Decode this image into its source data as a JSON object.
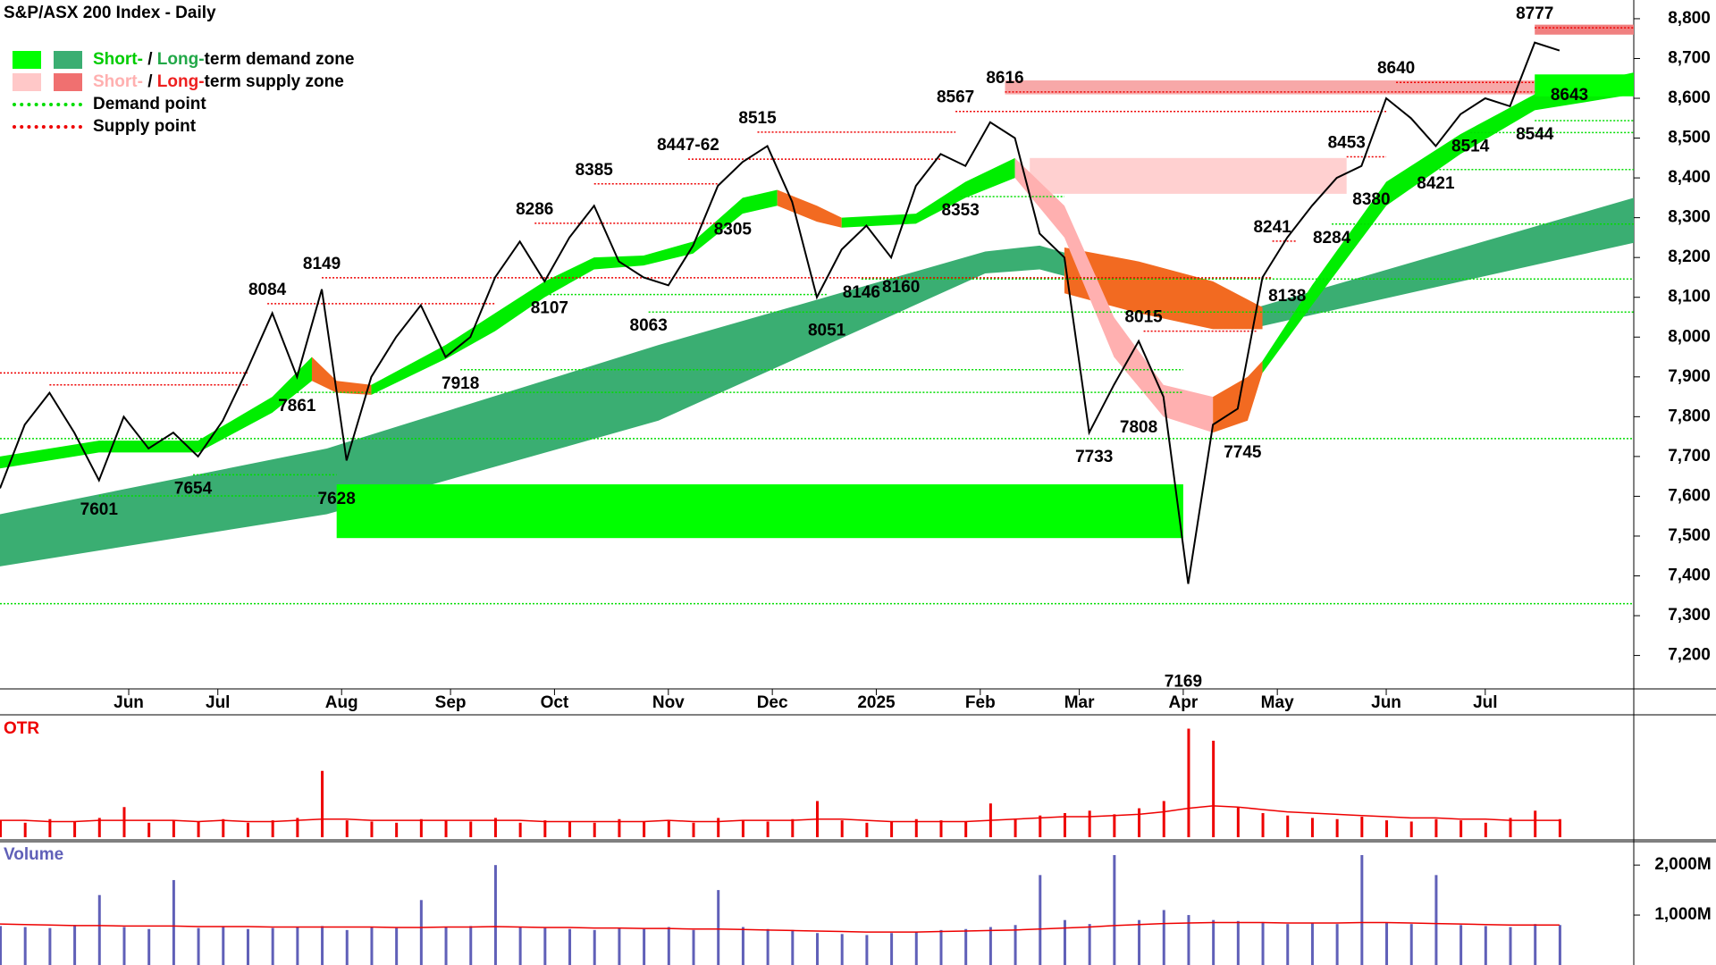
{
  "chart_data": {
    "type": "line",
    "title": "S&P/ASX 200 Index - Daily",
    "legend": [
      {
        "short": "Short-",
        "sep": " / ",
        "long": "Long-",
        "rest": "term demand zone"
      },
      {
        "short": "Short-",
        "sep": " / ",
        "long": "Long-",
        "rest": "term supply zone"
      },
      {
        "text": "Demand point"
      },
      {
        "text": "Supply point"
      }
    ],
    "x": [
      0,
      5,
      10,
      15,
      20,
      25,
      30,
      35,
      40,
      45,
      50,
      55,
      60,
      65,
      70,
      75,
      80,
      85,
      90,
      95,
      100,
      105,
      110,
      115,
      120,
      125,
      130,
      135,
      140,
      145,
      150,
      155,
      160,
      165,
      170,
      175,
      180,
      185,
      190,
      195,
      200,
      205,
      210,
      215,
      220,
      225,
      230,
      235,
      240,
      245,
      250,
      255,
      260,
      265,
      270,
      275,
      280,
      285,
      290,
      295,
      300,
      305,
      310,
      315
    ],
    "values": [
      7620,
      7780,
      7860,
      7760,
      7640,
      7800,
      7720,
      7760,
      7700,
      7790,
      7920,
      8060,
      7900,
      8120,
      7690,
      7900,
      8000,
      8080,
      7950,
      8000,
      8150,
      8240,
      8140,
      8250,
      8330,
      8190,
      8150,
      8130,
      8230,
      8380,
      8440,
      8480,
      8340,
      8100,
      8220,
      8280,
      8200,
      8380,
      8460,
      8430,
      8540,
      8500,
      8260,
      8200,
      7760,
      7880,
      7990,
      7850,
      7380,
      7780,
      7820,
      8150,
      8250,
      8330,
      8400,
      8430,
      8600,
      8550,
      8480,
      8560,
      8600,
      8580,
      8740,
      8720
    ],
    "color": "#000000",
    "xlim": [
      0,
      330
    ],
    "xticks": [
      {
        "value": 26,
        "label": "Jun"
      },
      {
        "value": 44,
        "label": "Jul"
      },
      {
        "value": 69,
        "label": "Aug"
      },
      {
        "value": 91,
        "label": "Sep"
      },
      {
        "value": 112,
        "label": "Oct"
      },
      {
        "value": 135,
        "label": "Nov"
      },
      {
        "value": 156,
        "label": "Dec"
      },
      {
        "value": 177,
        "label": "2025"
      },
      {
        "value": 198,
        "label": "Feb"
      },
      {
        "value": 218,
        "label": "Mar"
      },
      {
        "value": 239,
        "label": "Apr"
      },
      {
        "value": 258,
        "label": "May"
      },
      {
        "value": 280,
        "label": "Jun"
      },
      {
        "value": 300,
        "label": "Jul"
      }
    ],
    "ylim": [
      7116,
      8847
    ],
    "yticks": [
      {
        "value": 7200,
        "label": "7,200"
      },
      {
        "value": 7300,
        "label": "7,300"
      },
      {
        "value": 7400,
        "label": "7,400"
      },
      {
        "value": 7500,
        "label": "7,500"
      },
      {
        "value": 7600,
        "label": "7,600"
      },
      {
        "value": 7700,
        "label": "7,700"
      },
      {
        "value": 7800,
        "label": "7,800"
      },
      {
        "value": 7900,
        "label": "7,900"
      },
      {
        "value": 8000,
        "label": "8,000"
      },
      {
        "value": 8100,
        "label": "8,100"
      },
      {
        "value": 8200,
        "label": "8,200"
      },
      {
        "value": 8300,
        "label": "8,300"
      },
      {
        "value": 8400,
        "label": "8,400"
      },
      {
        "value": 8500,
        "label": "8,500"
      },
      {
        "value": 8600,
        "label": "8,600"
      },
      {
        "value": 8700,
        "label": "8,700"
      },
      {
        "value": 8800,
        "label": "8,800"
      }
    ],
    "bands": [
      {
        "color": "#3aae72",
        "x": [
          0,
          66,
          133,
          199,
          210,
          254,
          330
        ],
        "upper": [
          7555,
          7720,
          7980,
          8215,
          8230,
          8075,
          8350
        ],
        "lower": [
          7424,
          7555,
          7790,
          8160,
          8170,
          8025,
          8237
        ]
      },
      {
        "color": "#f26a21",
        "x": [
          215,
          230,
          245,
          255
        ],
        "upper": [
          8225,
          8190,
          8140,
          8075
        ],
        "lower": [
          8110,
          8060,
          8020,
          8020
        ]
      },
      {
        "color": "#00ee00",
        "x": [
          0,
          20,
          40,
          55,
          63
        ],
        "upper": [
          7700,
          7740,
          7740,
          7850,
          7950
        ],
        "lower": [
          7670,
          7710,
          7710,
          7810,
          7890
        ]
      },
      {
        "color": "#f26a21",
        "x": [
          63,
          68,
          75
        ],
        "upper": [
          7950,
          7890,
          7880
        ],
        "lower": [
          7890,
          7860,
          7855
        ]
      },
      {
        "color": "#00ee00",
        "x": [
          75,
          90,
          100,
          110,
          120,
          130,
          140,
          150,
          157
        ],
        "upper": [
          7880,
          7980,
          8060,
          8140,
          8200,
          8205,
          8240,
          8350,
          8370
        ],
        "lower": [
          7855,
          7945,
          8015,
          8100,
          8170,
          8180,
          8210,
          8310,
          8330
        ]
      },
      {
        "color": "#f26a21",
        "x": [
          157,
          165,
          170
        ],
        "upper": [
          8370,
          8330,
          8300
        ],
        "lower": [
          8330,
          8290,
          8275
        ]
      },
      {
        "color": "#00ee00",
        "x": [
          170,
          185,
          195,
          205
        ],
        "upper": [
          8300,
          8310,
          8390,
          8450
        ],
        "lower": [
          8275,
          8285,
          8350,
          8400
        ]
      },
      {
        "color": "#ffb0b0",
        "x": [
          205,
          215,
          225,
          235,
          245
        ],
        "upper": [
          8450,
          8330,
          8050,
          7880,
          7850
        ],
        "lower": [
          8400,
          8250,
          7950,
          7800,
          7760
        ]
      },
      {
        "color": "#f26a21",
        "x": [
          245,
          252,
          255
        ],
        "upper": [
          7850,
          7900,
          7940
        ],
        "lower": [
          7760,
          7790,
          7910
        ]
      },
      {
        "color": "#00ee00",
        "x": [
          255,
          265,
          280,
          295,
          310,
          330
        ],
        "upper": [
          7940,
          8130,
          8390,
          8510,
          8610,
          8665
        ],
        "lower": [
          7910,
          8080,
          8330,
          8460,
          8570,
          8610
        ]
      }
    ],
    "zones": [
      {
        "color": "#ffd0d0",
        "x": [
          208,
          272
        ],
        "range": [
          8360,
          8450
        ]
      },
      {
        "color": "#f7a8a8",
        "x": [
          203,
          310
        ],
        "range": [
          8610,
          8645
        ]
      },
      {
        "color": "#00ff00",
        "x": [
          68,
          239
        ],
        "range": [
          7495,
          7630
        ]
      },
      {
        "color": "#00ff00",
        "x": [
          310,
          330
        ],
        "range": [
          8605,
          8660
        ]
      },
      {
        "color": "#f08080",
        "x": [
          310,
          330
        ],
        "range": [
          8760,
          8785
        ]
      }
    ],
    "demand_points": [
      {
        "x": [
          0,
          330
        ],
        "value": 7330
      },
      {
        "x": [
          20,
          68
        ],
        "value": 7601
      },
      {
        "x": [
          39,
          68
        ],
        "value": 7654
      },
      {
        "x": [
          0,
          330
        ],
        "value": 7745
      },
      {
        "x": [
          60,
          239
        ],
        "value": 7861
      },
      {
        "x": [
          93,
          239
        ],
        "value": 7918
      },
      {
        "x": [
          111,
          167
        ],
        "value": 8107
      },
      {
        "x": [
          131,
          330
        ],
        "value": 8063
      },
      {
        "x": [
          174,
          330
        ],
        "value": 8146
      },
      {
        "x": [
          194,
          215
        ],
        "value": 8353
      },
      {
        "x": [
          269,
          330
        ],
        "value": 8284
      },
      {
        "x": [
          290,
          330
        ],
        "value": 8421
      },
      {
        "x": [
          297,
          330
        ],
        "value": 8514
      },
      {
        "x": [
          310,
          330
        ],
        "value": 8544
      }
    ],
    "supply_points": [
      {
        "x": [
          0,
          50
        ],
        "value": 7910
      },
      {
        "x": [
          10,
          50
        ],
        "value": 7880
      },
      {
        "x": [
          54,
          100
        ],
        "value": 8084
      },
      {
        "x": [
          65,
          257
        ],
        "value": 8149
      },
      {
        "x": [
          108,
          145
        ],
        "value": 8286
      },
      {
        "x": [
          120,
          145
        ],
        "value": 8385
      },
      {
        "x": [
          139,
          190
        ],
        "value": 8447
      },
      {
        "x": [
          153,
          193
        ],
        "value": 8515
      },
      {
        "x": [
          193,
          280
        ],
        "value": 8567
      },
      {
        "x": [
          203,
          310
        ],
        "value": 8616
      },
      {
        "x": [
          231,
          254
        ],
        "value": 8015
      },
      {
        "x": [
          257,
          262
        ],
        "value": 8241
      },
      {
        "x": [
          272,
          280
        ],
        "value": 8453
      },
      {
        "x": [
          282,
          310
        ],
        "value": 8640
      },
      {
        "x": [
          310,
          330
        ],
        "value": 8777
      }
    ],
    "annotations": [
      {
        "x": 20,
        "value": 7601,
        "position": "below"
      },
      {
        "x": 39,
        "value": 7654,
        "position": "below"
      },
      {
        "x": 54,
        "value": 8084,
        "position": "above"
      },
      {
        "x": 60,
        "value": 7861,
        "position": "below"
      },
      {
        "x": 65,
        "value": 8149,
        "position": "above"
      },
      {
        "x": 68,
        "value": 7628,
        "position": "below"
      },
      {
        "x": 93,
        "value": 7918,
        "position": "below"
      },
      {
        "x": 108,
        "value": 8286,
        "position": "above"
      },
      {
        "x": 111,
        "value": 8107,
        "position": "below"
      },
      {
        "x": 120,
        "value": 8385,
        "position": "above"
      },
      {
        "x": 131,
        "value": 8063,
        "position": "below"
      },
      {
        "x": 139,
        "value": 8447,
        "label": "8447-62",
        "position": "above"
      },
      {
        "x": 148,
        "value": 8305,
        "position": "below"
      },
      {
        "x": 153,
        "value": 8515,
        "position": "above"
      },
      {
        "x": 167,
        "value": 8051,
        "position": "below"
      },
      {
        "x": 174,
        "value": 8146,
        "position": "below"
      },
      {
        "x": 182,
        "value": 8160,
        "position": "below"
      },
      {
        "x": 193,
        "value": 8567,
        "position": "above"
      },
      {
        "x": 194,
        "value": 8353,
        "position": "below"
      },
      {
        "x": 203,
        "value": 8616,
        "position": "above"
      },
      {
        "x": 221,
        "value": 7733,
        "position": "below"
      },
      {
        "x": 231,
        "value": 8015,
        "position": "above"
      },
      {
        "x": 230,
        "value": 7808,
        "position": "below"
      },
      {
        "x": 239,
        "value": 7169,
        "position": "below"
      },
      {
        "x": 251,
        "value": 7745,
        "position": "below"
      },
      {
        "x": 257,
        "value": 8241,
        "position": "above"
      },
      {
        "x": 260,
        "value": 8138,
        "position": "below"
      },
      {
        "x": 269,
        "value": 8284,
        "position": "below"
      },
      {
        "x": 272,
        "value": 8453,
        "position": "above"
      },
      {
        "x": 277,
        "value": 8380,
        "position": "below"
      },
      {
        "x": 282,
        "value": 8640,
        "position": "above"
      },
      {
        "x": 290,
        "value": 8421,
        "position": "below"
      },
      {
        "x": 297,
        "value": 8514,
        "position": "below"
      },
      {
        "x": 310,
        "value": 8544,
        "position": "below"
      },
      {
        "x": 317,
        "value": 8643,
        "position": "below"
      },
      {
        "x": 310,
        "value": 8777,
        "position": "above"
      }
    ],
    "otr": {
      "label": "OTR",
      "color": "#ee0000",
      "ylim": [
        0,
        100
      ],
      "values": [
        14,
        12,
        15,
        13,
        16,
        25,
        12,
        14,
        13,
        15,
        12,
        14,
        16,
        55,
        14,
        13,
        12,
        15,
        14,
        13,
        16,
        12,
        14,
        13,
        12,
        15,
        13,
        14,
        12,
        16,
        14,
        13,
        15,
        30,
        14,
        12,
        13,
        15,
        14,
        13,
        28,
        15,
        18,
        20,
        22,
        19,
        24,
        30,
        90,
        80,
        25,
        20,
        18,
        16,
        15,
        17,
        14,
        13,
        15,
        14,
        12,
        16,
        22,
        15
      ],
      "ma_values": [
        14,
        14,
        13,
        13,
        14,
        14,
        14,
        14,
        13,
        14,
        13,
        13,
        14,
        15,
        15,
        14,
        14,
        14,
        14,
        14,
        14,
        14,
        13,
        13,
        13,
        13,
        13,
        14,
        13,
        13,
        14,
        14,
        14,
        15,
        15,
        14,
        13,
        13,
        13,
        13,
        14,
        15,
        16,
        17,
        17,
        18,
        19,
        21,
        24,
        26,
        25,
        23,
        21,
        20,
        19,
        18,
        17,
        16,
        16,
        15,
        15,
        14,
        14,
        14
      ]
    },
    "volume": {
      "label": "Volume",
      "color": "#6060b8",
      "ma_color": "#ee0000",
      "ylim": [
        0,
        2450
      ],
      "yticks": [
        {
          "value": 1000,
          "label": "1,000M"
        },
        {
          "value": 2000,
          "label": "2,000M"
        }
      ],
      "values": [
        780,
        760,
        740,
        800,
        1400,
        760,
        720,
        1700,
        740,
        760,
        720,
        740,
        760,
        780,
        700,
        760,
        740,
        1300,
        760,
        780,
        2000,
        760,
        740,
        720,
        700,
        740,
        720,
        760,
        700,
        1500,
        760,
        720,
        700,
        640,
        620,
        600,
        640,
        660,
        700,
        720,
        760,
        800,
        1800,
        900,
        820,
        2200,
        900,
        1100,
        1000,
        900,
        880,
        860,
        820,
        840,
        820,
        2200,
        840,
        820,
        1800,
        800,
        780,
        760,
        820,
        800
      ],
      "ma_values": [
        820,
        810,
        800,
        790,
        790,
        780,
        780,
        780,
        770,
        770,
        770,
        760,
        760,
        760,
        760,
        760,
        750,
        750,
        760,
        760,
        770,
        760,
        750,
        750,
        740,
        740,
        730,
        730,
        720,
        720,
        710,
        700,
        690,
        680,
        670,
        660,
        660,
        660,
        670,
        680,
        690,
        700,
        720,
        740,
        760,
        790,
        810,
        830,
        840,
        850,
        850,
        850,
        840,
        840,
        840,
        850,
        850,
        840,
        830,
        820,
        810,
        800,
        800,
        800
      ]
    }
  }
}
